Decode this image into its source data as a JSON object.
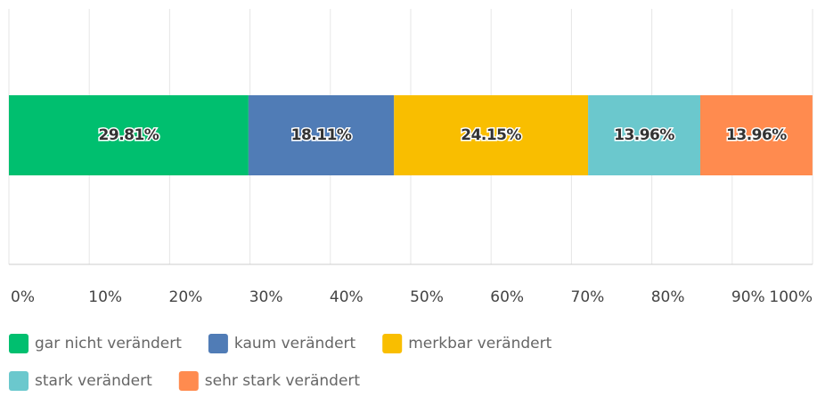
{
  "chart_data": {
    "type": "stacked-bar-horizontal",
    "categories": [
      null
    ],
    "series": [
      {
        "name": "gar nicht verändert",
        "color": "#00bf6f",
        "values": [
          29.81
        ],
        "value_labels": [
          "29.81%"
        ]
      },
      {
        "name": "kaum verändert",
        "color": "#507cb6",
        "values": [
          18.11
        ],
        "value_labels": [
          "18.11%"
        ]
      },
      {
        "name": "merkbar verändert",
        "color": "#f9be00",
        "values": [
          24.15
        ],
        "value_labels": [
          "24.15%"
        ]
      },
      {
        "name": "stark verändert",
        "color": "#6bc8cd",
        "values": [
          13.96
        ],
        "value_labels": [
          "13.96%"
        ]
      },
      {
        "name": "sehr stark verändert",
        "color": "#ff8b4f",
        "values": [
          13.96
        ],
        "value_labels": [
          "13.96%"
        ]
      }
    ],
    "xlim": [
      0,
      100
    ],
    "xticks": [
      {
        "value": 0,
        "label": "0%"
      },
      {
        "value": 10,
        "label": "10%"
      },
      {
        "value": 20,
        "label": "20%"
      },
      {
        "value": 30,
        "label": "30%"
      },
      {
        "value": 40,
        "label": "40%"
      },
      {
        "value": 50,
        "label": "50%"
      },
      {
        "value": 60,
        "label": "60%"
      },
      {
        "value": 70,
        "label": "70%"
      },
      {
        "value": 80,
        "label": "80%"
      },
      {
        "value": 90,
        "label": "90%"
      },
      {
        "value": 100,
        "label": "100%"
      }
    ],
    "grid": true,
    "legend": "bottom"
  }
}
